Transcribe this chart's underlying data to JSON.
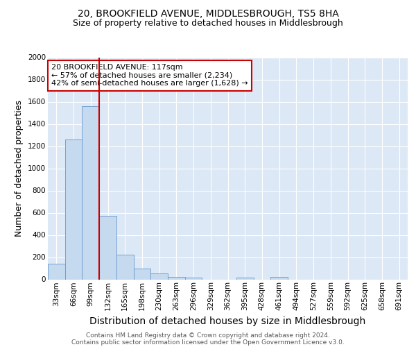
{
  "title1": "20, BROOKFIELD AVENUE, MIDDLESBROUGH, TS5 8HA",
  "title2": "Size of property relative to detached houses in Middlesbrough",
  "xlabel": "Distribution of detached houses by size in Middlesbrough",
  "ylabel": "Number of detached properties",
  "footer1": "Contains HM Land Registry data © Crown copyright and database right 2024.",
  "footer2": "Contains public sector information licensed under the Open Government Licence v3.0.",
  "categories": [
    "33sqm",
    "66sqm",
    "99sqm",
    "132sqm",
    "165sqm",
    "198sqm",
    "230sqm",
    "263sqm",
    "296sqm",
    "329sqm",
    "362sqm",
    "395sqm",
    "428sqm",
    "461sqm",
    "494sqm",
    "527sqm",
    "559sqm",
    "592sqm",
    "625sqm",
    "658sqm",
    "691sqm"
  ],
  "values": [
    140,
    1260,
    1560,
    570,
    220,
    100,
    55,
    25,
    15,
    0,
    0,
    15,
    0,
    20,
    0,
    0,
    0,
    0,
    0,
    0,
    0
  ],
  "bar_color": "#c5d9ef",
  "bar_edge_color": "#6699cc",
  "red_line_color": "#cc0000",
  "annotation_text": "20 BROOKFIELD AVENUE: 117sqm\n← 57% of detached houses are smaller (2,234)\n42% of semi-detached houses are larger (1,628) →",
  "annotation_box_color": "#cc0000",
  "ylim": [
    0,
    2000
  ],
  "yticks": [
    0,
    200,
    400,
    600,
    800,
    1000,
    1200,
    1400,
    1600,
    1800,
    2000
  ],
  "bg_color": "#dce8f5",
  "grid_color": "#ffffff",
  "title1_fontsize": 10,
  "title2_fontsize": 9,
  "xlabel_fontsize": 10,
  "ylabel_fontsize": 9,
  "tick_fontsize": 7.5,
  "annotation_fontsize": 8,
  "footer_fontsize": 6.5,
  "footer_color": "#555555"
}
